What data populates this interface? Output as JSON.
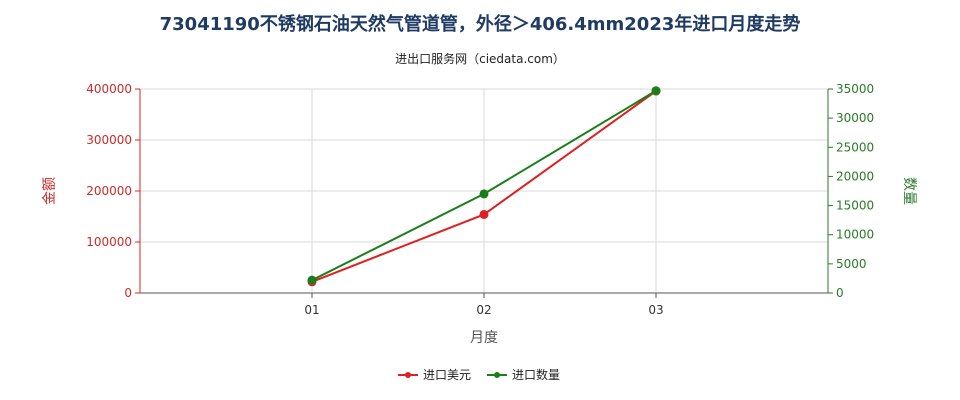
{
  "title": "73041190不锈钢石油天然气管道管，外径＞406.4mm2023年进口月度走势",
  "subtitle": "进出口服务网（ciedata.com）",
  "colors": {
    "import_usd": "#e02020",
    "import_qty": "#1a7f1a",
    "grid": "#d9d9d9"
  },
  "chart_data": {
    "type": "line",
    "x": [
      "01",
      "02",
      "03"
    ],
    "xlabel": "月度",
    "ylabel_left": "金额",
    "ylabel_right": "数量",
    "ylim_left": [
      0,
      400000
    ],
    "ylim_right": [
      0,
      35000
    ],
    "yticks_left": [
      "0",
      "100000",
      "200000",
      "300000",
      "400000"
    ],
    "yticks_right": [
      "0",
      "5000",
      "10000",
      "15000",
      "20000",
      "25000",
      "30000",
      "35000"
    ],
    "grid": true,
    "legend_position": "bottom",
    "series": [
      {
        "name": "进口美元",
        "axis": "left",
        "values": [
          22000,
          154000,
          396000
        ]
      },
      {
        "name": "进口数量",
        "axis": "right",
        "values": [
          2200,
          17000,
          34700
        ]
      }
    ]
  }
}
